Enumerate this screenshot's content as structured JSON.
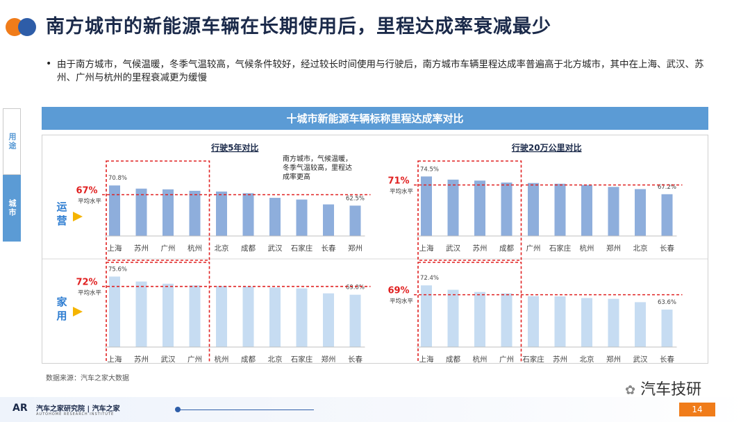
{
  "title": "南方城市的新能源车辆在长期使用后，里程达成率衰减最少",
  "bullet": "由于南方城市，气候温暖，冬季气温较高，气候条件较好，经过较长时间使用与行驶后，南方城市车辆里程达成率普遍高于北方城市，其中在上海、武汉、苏州、广州与杭州的里程衰减更为缓慢",
  "side_tabs": [
    "用途",
    "城市"
  ],
  "banner": "十城市新能源车辆标称里程达成率对比",
  "rows": [
    {
      "name": "运营",
      "avg_label": "平均水平"
    },
    {
      "name": "家用",
      "avg_label": "平均水平"
    }
  ],
  "annotation": "南方城市，气候温暖，冬季气温较高，里程达成率更高",
  "source": "数据来源：汽车之家大数据",
  "brand": "汽车之家研究院 | 汽车之家",
  "brand_sub": "AUTOHOME RESEARCH INSTITUTE",
  "wechat": "汽车技研",
  "page_number": "14",
  "colors": {
    "accent": "#5b9bd5",
    "operating_bar": "#8eaedc",
    "home_bar": "#c6dcf2",
    "highlight": "#e02020",
    "title_orange": "#f07c1a",
    "title_blue": "#2e5da8"
  },
  "chart_data": [
    {
      "type": "bar",
      "title": "行驶5年对比",
      "row": "运营",
      "categories": [
        "上海",
        "苏州",
        "广州",
        "杭州",
        "北京",
        "成都",
        "武汉",
        "石家庄",
        "长春",
        "郑州"
      ],
      "values": [
        70.8,
        69.5,
        69.2,
        68.6,
        68.3,
        67.6,
        65.7,
        65.0,
        63.0,
        62.5
      ],
      "value_labels": {
        "0": "70.8%",
        "9": "62.5%"
      },
      "average": 67,
      "average_label": "67%",
      "highlighted_count": 4
    },
    {
      "type": "bar",
      "title": "行驶20万公里对比",
      "row": "运营",
      "categories": [
        "上海",
        "武汉",
        "苏州",
        "成都",
        "广州",
        "石家庄",
        "杭州",
        "郑州",
        "北京",
        "长春"
      ],
      "values": [
        74.5,
        73.2,
        72.8,
        72.0,
        71.8,
        71.5,
        71.0,
        70.2,
        69.3,
        67.2
      ],
      "value_labels": {
        "0": "74.5%",
        "9": "67.2%"
      },
      "average": 71,
      "average_label": "71%",
      "highlighted_count": 4
    },
    {
      "type": "bar",
      "title": "行驶5年对比",
      "row": "家用",
      "categories": [
        "上海",
        "苏州",
        "武汉",
        "广州",
        "杭州",
        "成都",
        "北京",
        "石家庄",
        "郑州",
        "长春"
      ],
      "values": [
        75.6,
        73.8,
        73.0,
        72.4,
        72.2,
        72.0,
        71.6,
        71.3,
        69.5,
        69.0
      ],
      "value_labels": {
        "0": "75.6%",
        "9": "69.0%"
      },
      "average": 72,
      "average_label": "72%",
      "highlighted_count": 4
    },
    {
      "type": "bar",
      "title": "行驶20万公里对比",
      "row": "家用",
      "categories": [
        "上海",
        "成都",
        "杭州",
        "广州",
        "石家庄",
        "苏州",
        "北京",
        "郑州",
        "武汉",
        "长春"
      ],
      "values": [
        72.4,
        70.8,
        70.0,
        69.5,
        68.5,
        68.4,
        67.8,
        67.5,
        66.3,
        63.6
      ],
      "value_labels": {
        "0": "72.4%",
        "9": "63.6%"
      },
      "average": 69,
      "average_label": "69%",
      "highlighted_count": 4
    }
  ]
}
